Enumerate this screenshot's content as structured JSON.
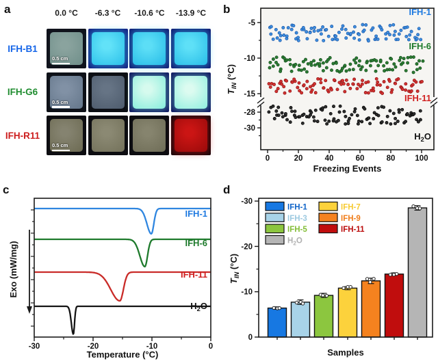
{
  "figure": {
    "panel_a": {
      "letter": "a",
      "column_headers": [
        "0.0 °C",
        "-6.3 °C",
        "-10.6 °C",
        "-13.9 °C"
      ],
      "scale_bar_label": "0.5 cm",
      "rows": [
        {
          "label": "IFH-B1",
          "label_color": "#1565e8",
          "cells": [
            {
              "state": "off",
              "bg": "#10131c",
              "fill": "#8aa39e",
              "fill2": "#71908b",
              "glow": false
            },
            {
              "state": "glow",
              "bg": "#131d80",
              "fill": "#62e2f8",
              "fill2": "#2ec2ea",
              "glow": true,
              "glow_color": "#35c8ee99"
            },
            {
              "state": "glow",
              "bg": "#111a74",
              "fill": "#5cdef6",
              "fill2": "#2abee8",
              "glow": true,
              "glow_color": "#35c8ee99"
            },
            {
              "state": "glow",
              "bg": "#111a74",
              "fill": "#5ee0f7",
              "fill2": "#2cc0e9",
              "glow": true,
              "glow_color": "#35c8ee99"
            }
          ]
        },
        {
          "label": "IFH-G6",
          "label_color": "#1f8c2f",
          "cells": [
            {
              "state": "off",
              "bg": "#0e1118",
              "fill": "#8191a5",
              "fill2": "#66788c",
              "glow": false
            },
            {
              "state": "off",
              "bg": "#0c0f14",
              "fill": "#667485",
              "fill2": "#4f5d6e",
              "glow": false
            },
            {
              "state": "glow",
              "bg": "#0e1560",
              "fill": "#d6faee",
              "fill2": "#8aeedd",
              "glow": true,
              "glow_color": "#7fe8d688"
            },
            {
              "state": "glow",
              "bg": "#0e1560",
              "fill": "#dcfbf0",
              "fill2": "#94f0e0",
              "glow": true,
              "glow_color": "#7fe8d688"
            }
          ]
        },
        {
          "label": "IFH-R11",
          "label_color": "#cc1d1d",
          "cells": [
            {
              "state": "off",
              "bg": "#0d0d11",
              "fill": "#858370",
              "fill2": "#6e6c54",
              "glow": false
            },
            {
              "state": "off",
              "bg": "#0d0d11",
              "fill": "#8b8973",
              "fill2": "#75735c",
              "glow": false
            },
            {
              "state": "off",
              "bg": "#0d0d11",
              "fill": "#86846e",
              "fill2": "#706e58",
              "glow": false
            },
            {
              "state": "glow",
              "bg": "#170609",
              "fill": "#cb1514",
              "fill2": "#9c0b0b",
              "glow": true,
              "glow_color": "#d4141488"
            }
          ]
        }
      ]
    },
    "panel_b": {
      "letter": "b"
    },
    "panel_c": {
      "letter": "c"
    },
    "panel_d": {
      "letter": "d"
    }
  },
  "chart_data": [
    {
      "panel": "b",
      "type": "scatter",
      "xlabel": "Freezing Events",
      "ylabel_segments": [
        {
          "t": "T",
          "italic": true
        },
        {
          "t": "IN",
          "sub": true,
          "italic": true
        },
        {
          "t": " (°C)"
        }
      ],
      "x_range": [
        0,
        100
      ],
      "x_ticks": [
        0,
        20,
        40,
        60,
        80,
        100
      ],
      "x_minor_ticks": [
        10,
        30,
        50,
        70,
        90
      ],
      "y_axis_break": true,
      "y_ticks_upper": [
        -5,
        -10,
        -15
      ],
      "y_minor_upper": [
        -7.5,
        -12.5
      ],
      "y_ticks_lower": [
        -28,
        -30
      ],
      "y_minor_lower": [
        -29,
        -31
      ],
      "legend_position": "labels-inside-right",
      "series": [
        {
          "name": "IFH-1",
          "label_segments": [
            {
              "t": "IFH-1"
            }
          ],
          "color": "#3e8ede",
          "edge": "#1a56a8",
          "n": 100,
          "y_mean": -6.45,
          "y_halfrange": 1.15,
          "section": "upper",
          "label_y": 22,
          "label_color": "#1f7ae0"
        },
        {
          "name": "IFH-6",
          "label_segments": [
            {
              "t": "IFH-6"
            }
          ],
          "color": "#2c7c33",
          "edge": "#134d1d",
          "n": 100,
          "y_mean": -10.95,
          "y_halfrange": 1.1,
          "section": "upper",
          "label_y": 72,
          "label_color": "#1e7a2c"
        },
        {
          "name": "IFH-11",
          "label_segments": [
            {
              "t": "IFH-11"
            }
          ],
          "color": "#d23231",
          "edge": "#8f1414",
          "n": 100,
          "y_mean": -13.95,
          "y_halfrange": 1.05,
          "section": "upper",
          "label_y": 148,
          "label_color": "#d02020"
        },
        {
          "name": "H2O",
          "label_segments": [
            {
              "t": "H"
            },
            {
              "t": "2",
              "sub": true
            },
            {
              "t": "O"
            }
          ],
          "color": "#2e2e2e",
          "edge": "#000000",
          "n": 100,
          "y_mean": -28.4,
          "y_halfrange": 1.2,
          "section": "lower",
          "label_y": 204,
          "label_color": "#111111"
        }
      ]
    },
    {
      "panel": "c",
      "type": "line",
      "xlabel": "Temperature (°C)",
      "ylabel": "Exo (mW/mg)",
      "ylabel_arrow": "down",
      "x_range": [
        -30,
        0
      ],
      "x_ticks": [
        -30,
        -20,
        -10,
        0
      ],
      "x_minor_ticks": [
        -25,
        -15,
        -5
      ],
      "curves": [
        {
          "name": "IFH-1",
          "label_segments": [
            {
              "t": "IFH-1"
            }
          ],
          "color": "#2f86e0",
          "peak_temp_c": -10.1,
          "sigma_left_c": 0.75,
          "sigma_right_c": 0.42,
          "baseline_slot": 0,
          "label_y": 57,
          "label_color": "#1f7ae0"
        },
        {
          "name": "IFH-6",
          "label_segments": [
            {
              "t": "IFH-6"
            }
          ],
          "color": "#1e7a2c",
          "peak_temp_c": -11.2,
          "sigma_left_c": 0.85,
          "sigma_right_c": 0.45,
          "baseline_slot": 1,
          "label_y": 100,
          "label_color": "#1e7a2c"
        },
        {
          "name": "IFH-11",
          "label_segments": [
            {
              "t": "IFH-11"
            }
          ],
          "color": "#c92b28",
          "peak_temp_c": -15.45,
          "sigma_left_c": 1.55,
          "sigma_right_c": 0.6,
          "baseline_slot": 2,
          "label_y": 146,
          "label_color": "#d02020"
        },
        {
          "name": "H2O",
          "label_segments": [
            {
              "t": "H"
            },
            {
              "t": "2",
              "sub": true
            },
            {
              "t": "O"
            }
          ],
          "color": "#141414",
          "peak_temp_c": -23.35,
          "sigma_left_c": 0.34,
          "sigma_right_c": 0.2,
          "baseline_slot": 3,
          "label_y": 192,
          "label_color": "#111111"
        }
      ]
    },
    {
      "panel": "d",
      "type": "bar",
      "xlabel": "Samples",
      "ylabel_segments": [
        {
          "t": "T",
          "italic": true
        },
        {
          "t": "IN",
          "sub": true,
          "italic": true
        },
        {
          "t": " (°C)"
        }
      ],
      "ylim": [
        0,
        -30
      ],
      "y_ticks": [
        0,
        -10,
        -20,
        -30
      ],
      "y_minor_ticks": [
        -5,
        -15,
        -25
      ],
      "categories": [
        "IFH-1",
        "IFH-3",
        "IFH-5",
        "IFH-7",
        "IFH-9",
        "IFH-11",
        "H2O"
      ],
      "values": [
        -6.4,
        -7.7,
        -9.2,
        -10.8,
        -12.4,
        -13.9,
        -28.5
      ],
      "errors": [
        0.25,
        0.5,
        0.45,
        0.35,
        0.6,
        0.2,
        0.5
      ],
      "bar_colors": [
        "#1778e2",
        "#a8d3e8",
        "#8cc63f",
        "#fcd23c",
        "#f5821f",
        "#c00d0d",
        "#b5b5b5"
      ],
      "legend": {
        "position": "top-left",
        "columns": [
          [
            {
              "label": "IFH-1",
              "label_segments": [
                {
                  "t": "IFH-1"
                }
              ],
              "color": "#1778e2",
              "text_color": "#1064c8"
            },
            {
              "label": "IFH-3",
              "label_segments": [
                {
                  "t": "IFH-3"
                }
              ],
              "color": "#a8d3e8",
              "text_color": "#9cc9e0"
            },
            {
              "label": "IFH-5",
              "label_segments": [
                {
                  "t": "IFH-5"
                }
              ],
              "color": "#8cc63f",
              "text_color": "#84be38"
            },
            {
              "label": "H2O",
              "label_segments": [
                {
                  "t": "H"
                },
                {
                  "t": "2",
                  "sub": true
                },
                {
                  "t": "O"
                }
              ],
              "color": "#b5b5b5",
              "text_color": "#b0b0b0"
            }
          ],
          [
            {
              "label": "IFH-7",
              "label_segments": [
                {
                  "t": "IFH-7"
                }
              ],
              "color": "#fcd23c",
              "text_color": "#f7cb32"
            },
            {
              "label": "IFH-9",
              "label_segments": [
                {
                  "t": "IFH-9"
                }
              ],
              "color": "#f5821f",
              "text_color": "#f07d1a"
            },
            {
              "label": "IFH-11",
              "label_segments": [
                {
                  "t": "IFH-11"
                }
              ],
              "color": "#c00d0d",
              "text_color": "#bc0d0d"
            }
          ]
        ]
      }
    }
  ]
}
